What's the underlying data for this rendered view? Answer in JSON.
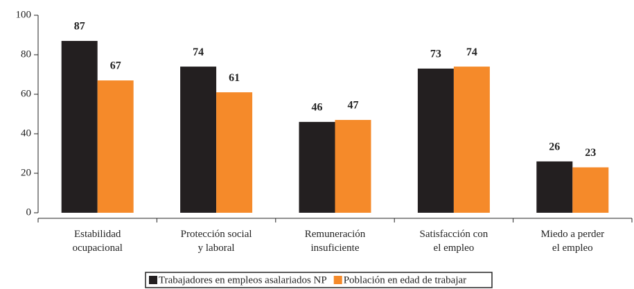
{
  "chart_data": {
    "type": "bar",
    "categories": [
      [
        "Estabilidad",
        "ocupacional"
      ],
      [
        "Protección social",
        "y laboral"
      ],
      [
        "Remuneración",
        "insuficiente"
      ],
      [
        "Satisfacción con",
        "el empleo"
      ],
      [
        "Miedo a perder",
        "el empleo"
      ]
    ],
    "series": [
      {
        "name": "Trabajadores en empleos asalariados NP",
        "color": "#231f20",
        "values": [
          87,
          74,
          46,
          73,
          26
        ]
      },
      {
        "name": "Población en edad de trabajar",
        "color": "#f58a2a",
        "values": [
          67,
          61,
          47,
          74,
          23
        ]
      }
    ],
    "ylim": [
      0,
      100
    ],
    "yticks": [
      0,
      20,
      40,
      60,
      80,
      100
    ],
    "grid": false,
    "legend": "bottom"
  }
}
